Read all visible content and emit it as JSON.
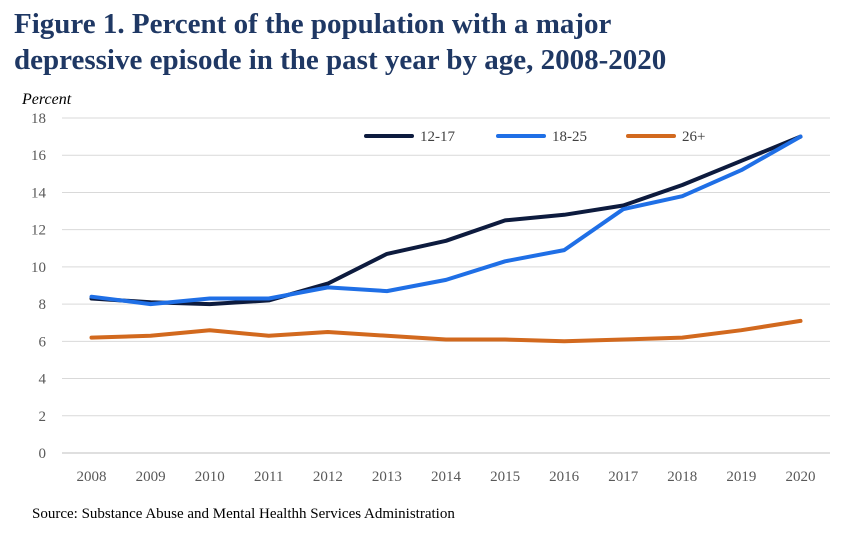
{
  "chart_data": {
    "type": "line",
    "title_lines": [
      "Figure 1. Percent of the population with a major",
      "depressive episode in the past year by age, 2008-2020"
    ],
    "ylabel": "Percent",
    "xlabel": "",
    "x": [
      "2008",
      "2009",
      "2010",
      "2011",
      "2012",
      "2013",
      "2014",
      "2015",
      "2016",
      "2017",
      "2018",
      "2019",
      "2020"
    ],
    "ylim": [
      0,
      18
    ],
    "yticks": [
      0,
      2,
      4,
      6,
      8,
      10,
      12,
      14,
      16,
      18
    ],
    "grid": true,
    "legend_position": "top-right",
    "series": [
      {
        "name": "12-17",
        "color": "#0d1b3e",
        "values": [
          8.3,
          8.1,
          8.0,
          8.2,
          9.1,
          10.7,
          11.4,
          12.5,
          12.8,
          13.3,
          14.4,
          15.7,
          17.0
        ]
      },
      {
        "name": "18-25",
        "color": "#1f6fe6",
        "values": [
          8.4,
          8.0,
          8.3,
          8.3,
          8.9,
          8.7,
          9.3,
          10.3,
          10.9,
          13.1,
          13.8,
          15.2,
          17.0
        ]
      },
      {
        "name": "26+",
        "color": "#d2691e",
        "values": [
          6.2,
          6.3,
          6.6,
          6.3,
          6.5,
          6.3,
          6.1,
          6.1,
          6.0,
          6.1,
          6.2,
          6.6,
          7.1
        ]
      }
    ]
  },
  "source": "Source: Substance Abuse and Mental Healthh Services Administration"
}
